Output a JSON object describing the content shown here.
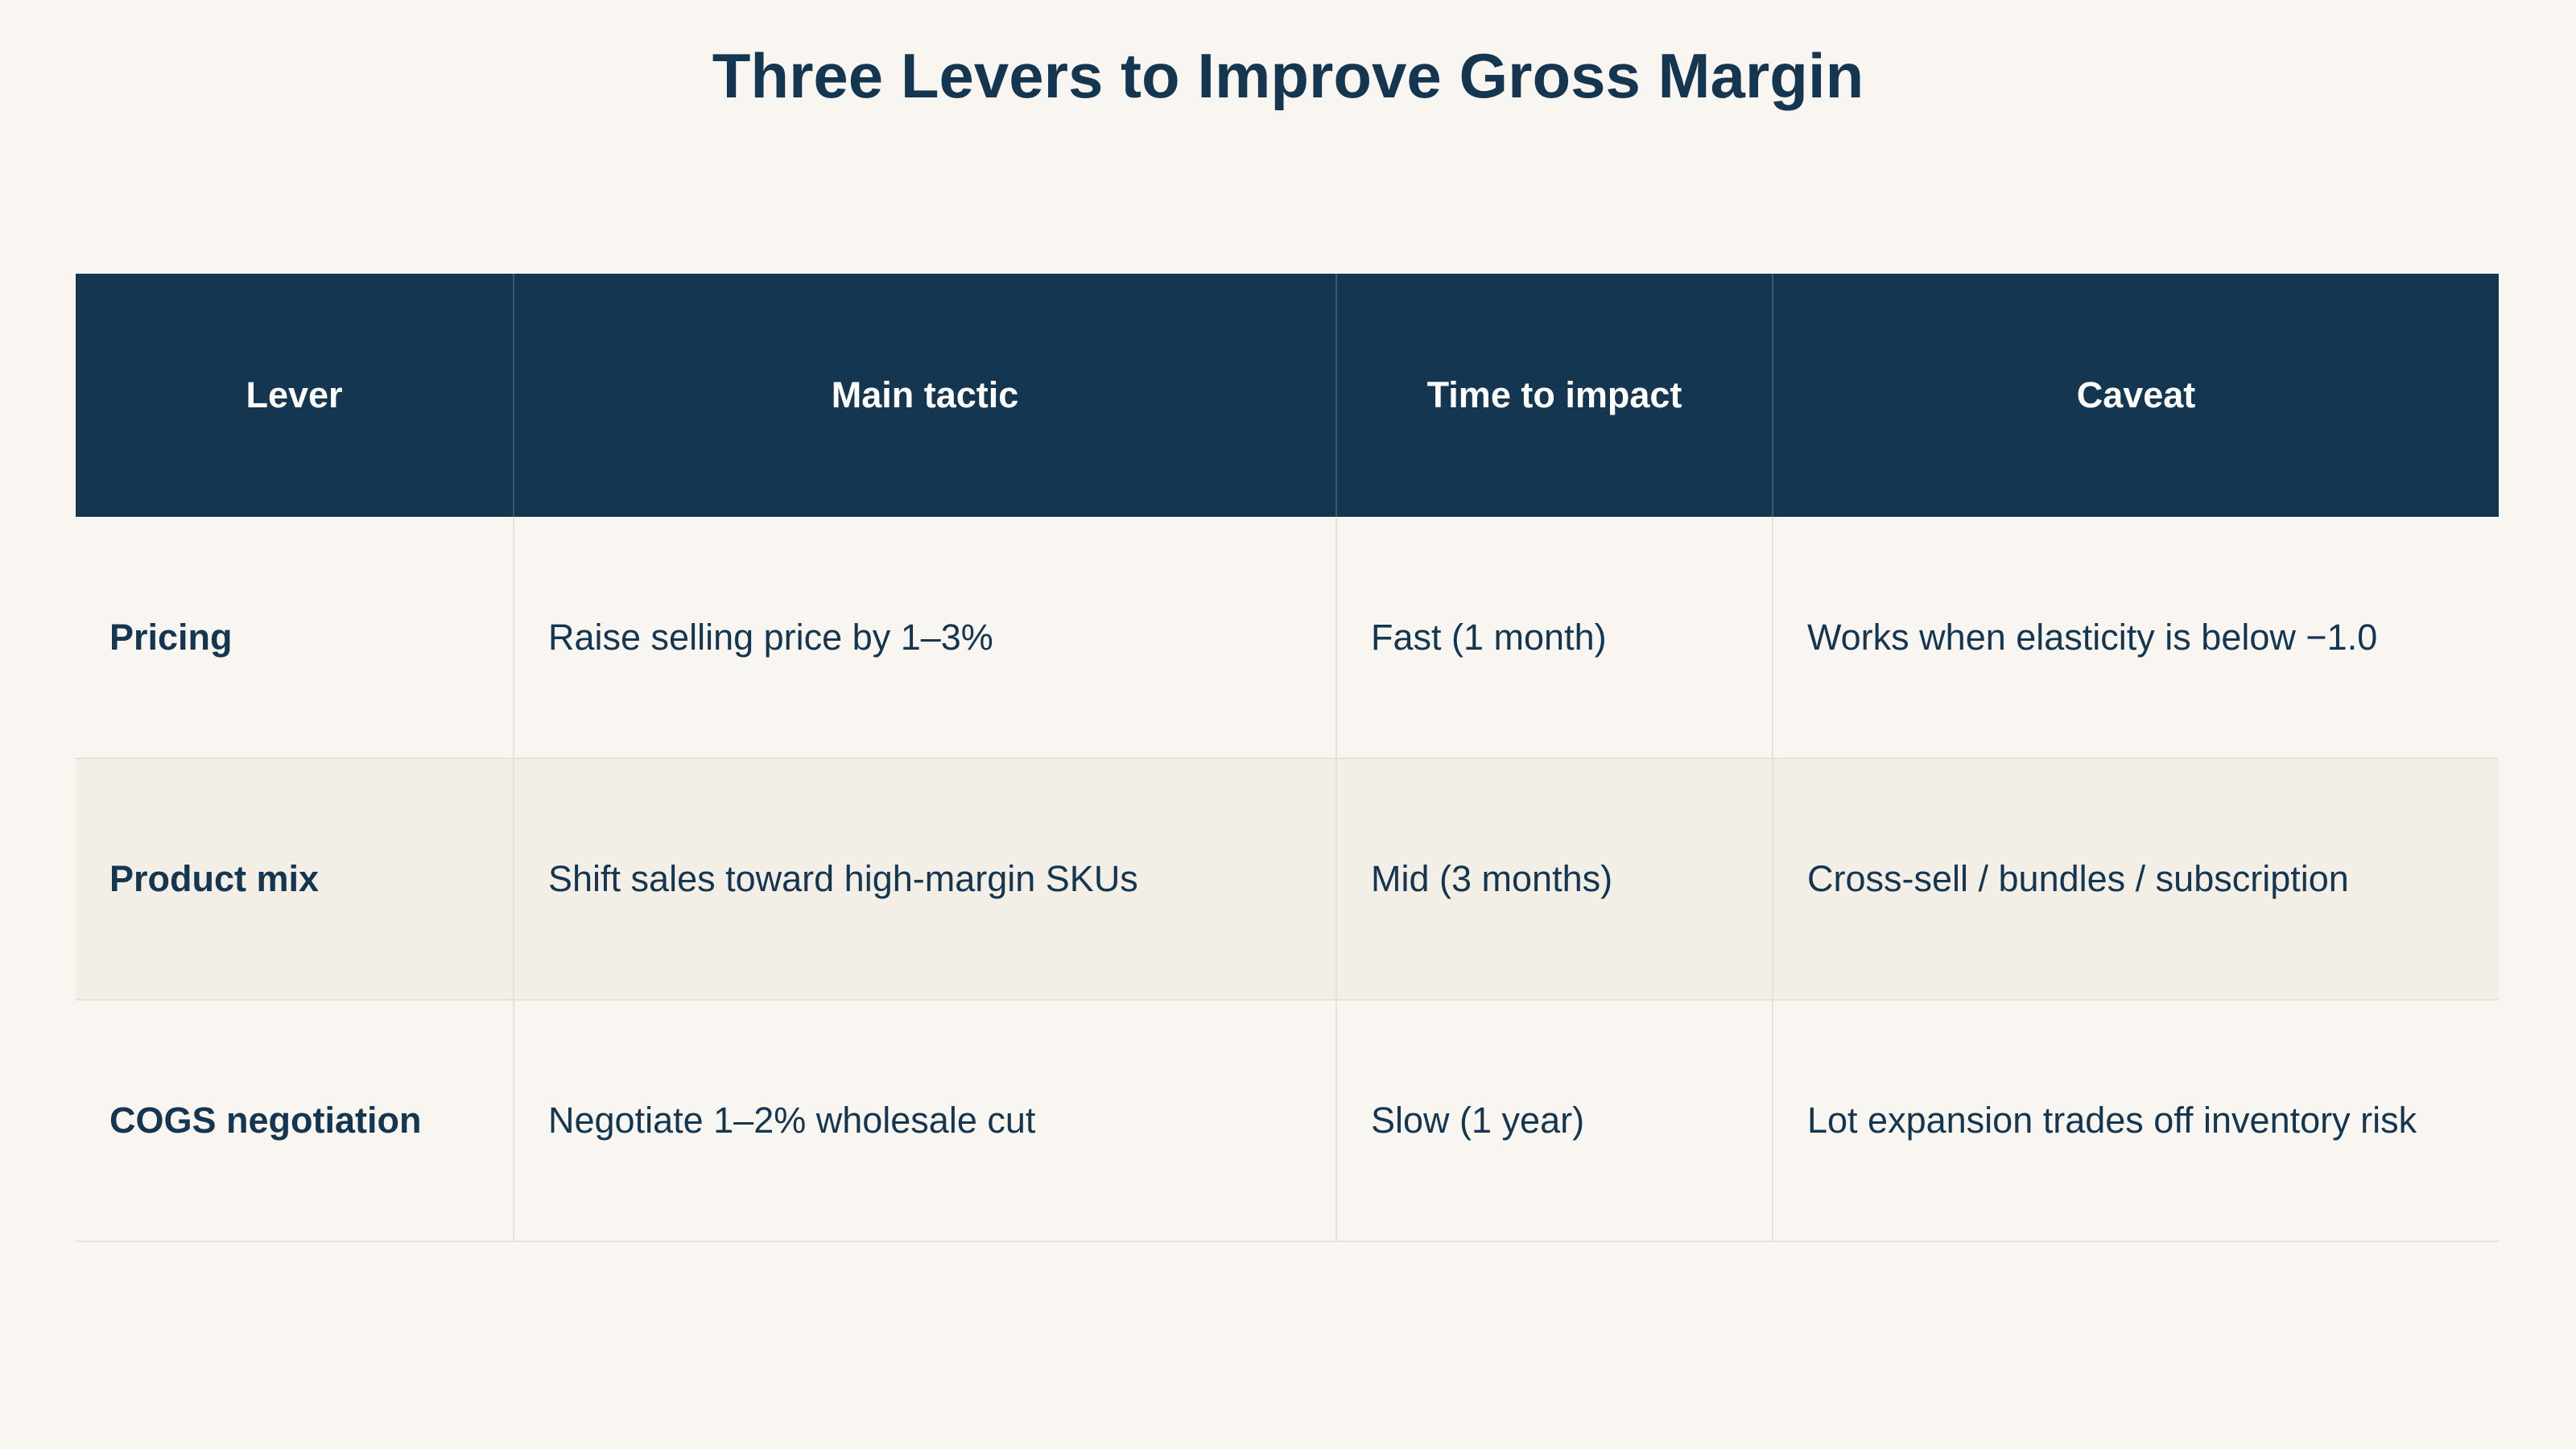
{
  "title": "Three Levers to Improve Gross Margin",
  "table": {
    "headers": [
      "Lever",
      "Main tactic",
      "Time to impact",
      "Caveat"
    ],
    "rows": [
      {
        "lever": "Pricing",
        "tactic": "Raise selling price by 1–3%",
        "time": "Fast (1 month)",
        "caveat": "Works when elasticity is below −1.0"
      },
      {
        "lever": "Product mix",
        "tactic": "Shift sales toward high-margin SKUs",
        "time": "Mid (3 months)",
        "caveat": "Cross-sell / bundles / subscription"
      },
      {
        "lever": "COGS negotiation",
        "tactic": "Negotiate 1–2% wholesale cut",
        "time": "Slow (1 year)",
        "caveat": "Lot expansion trades off inventory risk"
      }
    ]
  },
  "colors": {
    "header_background": "#143650",
    "text": "#143650",
    "page_background": "#f9f6f1",
    "alt_row_background": "#f3efe7"
  }
}
